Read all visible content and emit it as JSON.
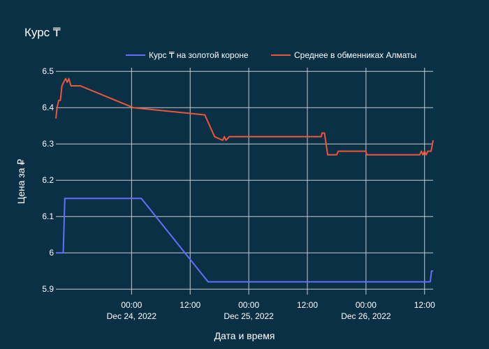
{
  "chart_data": {
    "type": "line",
    "title": "Курс ₸",
    "xlabel": "Дата и время",
    "ylabel": "Цена за ₽",
    "ylim": [
      5.885,
      6.51
    ],
    "xlim": [
      "2022-12-23 08:30",
      "2022-12-26 13:45"
    ],
    "yticks": [
      5.9,
      6,
      6.1,
      6.2,
      6.3,
      6.4,
      6.5
    ],
    "ytick_labels": [
      "5.9",
      "6",
      "6.1",
      "6.2",
      "6.3",
      "6.4",
      "6.5"
    ],
    "xticks": [
      "2022-12-24 00:00",
      "2022-12-24 12:00",
      "2022-12-25 00:00",
      "2022-12-25 12:00",
      "2022-12-26 00:00",
      "2022-12-26 12:00"
    ],
    "xtick_labels": [
      {
        "time": "00:00",
        "date": "Dec 24, 2022"
      },
      {
        "time": "12:00",
        "date": ""
      },
      {
        "time": "00:00",
        "date": "Dec 25, 2022"
      },
      {
        "time": "12:00",
        "date": ""
      },
      {
        "time": "00:00",
        "date": "Dec 26, 2022"
      },
      {
        "time": "12:00",
        "date": ""
      }
    ],
    "grid": true,
    "legend_position": "top-right",
    "series": [
      {
        "name": "Курс ₸ на золотой короне",
        "color": "#636efa",
        "points": [
          [
            "2022-12-23 08:30",
            6.0
          ],
          [
            "2022-12-23 10:00",
            6.0
          ],
          [
            "2022-12-23 10:20",
            6.15
          ],
          [
            "2022-12-24 02:00",
            6.15
          ],
          [
            "2022-12-24 15:40",
            5.92
          ],
          [
            "2022-12-26 13:10",
            5.92
          ],
          [
            "2022-12-26 13:25",
            5.95
          ],
          [
            "2022-12-26 13:45",
            5.95
          ]
        ]
      },
      {
        "name": "Среднее в обменниках Алматы",
        "color": "#ef553b",
        "points": [
          [
            "2022-12-23 08:30",
            6.37
          ],
          [
            "2022-12-23 08:45",
            6.4
          ],
          [
            "2022-12-23 09:05",
            6.42
          ],
          [
            "2022-12-23 09:25",
            6.42
          ],
          [
            "2022-12-23 09:45",
            6.46
          ],
          [
            "2022-12-23 10:05",
            6.47
          ],
          [
            "2022-12-23 10:30",
            6.48
          ],
          [
            "2022-12-23 10:50",
            6.47
          ],
          [
            "2022-12-23 11:10",
            6.48
          ],
          [
            "2022-12-23 11:35",
            6.46
          ],
          [
            "2022-12-23 13:30",
            6.46
          ],
          [
            "2022-12-24 00:20",
            6.4
          ],
          [
            "2022-12-24 15:00",
            6.38
          ],
          [
            "2022-12-24 17:00",
            6.32
          ],
          [
            "2022-12-24 18:40",
            6.31
          ],
          [
            "2022-12-24 19:00",
            6.32
          ],
          [
            "2022-12-24 19:20",
            6.31
          ],
          [
            "2022-12-24 20:00",
            6.32
          ],
          [
            "2022-12-25 14:50",
            6.32
          ],
          [
            "2022-12-25 15:00",
            6.33
          ],
          [
            "2022-12-25 15:30",
            6.33
          ],
          [
            "2022-12-25 16:10",
            6.27
          ],
          [
            "2022-12-25 18:00",
            6.27
          ],
          [
            "2022-12-25 18:20",
            6.28
          ],
          [
            "2022-12-26 00:00",
            6.28
          ],
          [
            "2022-12-26 00:10",
            6.27
          ],
          [
            "2022-12-26 11:00",
            6.27
          ],
          [
            "2022-12-26 11:20",
            6.28
          ],
          [
            "2022-12-26 11:40",
            6.27
          ],
          [
            "2022-12-26 12:00",
            6.28
          ],
          [
            "2022-12-26 12:20",
            6.27
          ],
          [
            "2022-12-26 12:40",
            6.28
          ],
          [
            "2022-12-26 13:20",
            6.28
          ],
          [
            "2022-12-26 13:45",
            6.31
          ]
        ]
      }
    ]
  }
}
